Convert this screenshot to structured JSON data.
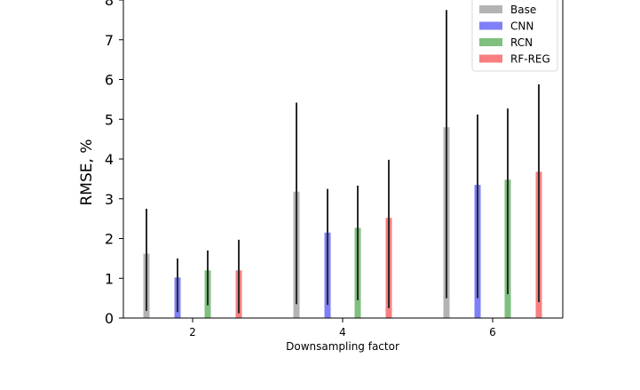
{
  "chart_data": {
    "type": "bar",
    "xlabel": "Downsampling factor",
    "ylabel": "RMSE, %",
    "categories": [
      "2",
      "4",
      "6"
    ],
    "ylim": [
      0,
      8
    ],
    "yticks": [
      0,
      1,
      2,
      3,
      4,
      5,
      6,
      7,
      8
    ],
    "grid": false,
    "legend_position": "top-right",
    "series": [
      {
        "name": "Base",
        "color": "#b3b3b3",
        "values": [
          1.62,
          3.18,
          4.8
        ],
        "err_low": [
          0.18,
          0.35,
          0.5
        ],
        "err_high": [
          2.75,
          5.42,
          7.75
        ]
      },
      {
        "name": "CNN",
        "color": "#7f7ff7",
        "values": [
          1.02,
          2.15,
          3.35
        ],
        "err_low": [
          0.15,
          0.33,
          0.5
        ],
        "err_high": [
          1.5,
          3.25,
          5.12
        ]
      },
      {
        "name": "RCN",
        "color": "#7fbf7f",
        "values": [
          1.2,
          2.27,
          3.48
        ],
        "err_low": [
          0.32,
          0.45,
          0.6
        ],
        "err_high": [
          1.7,
          3.33,
          5.27
        ]
      },
      {
        "name": "RF-REG",
        "color": "#f77f7f",
        "values": [
          1.2,
          2.52,
          3.68
        ],
        "err_low": [
          0.12,
          0.25,
          0.4
        ],
        "err_high": [
          1.97,
          3.98,
          5.88
        ]
      }
    ]
  }
}
